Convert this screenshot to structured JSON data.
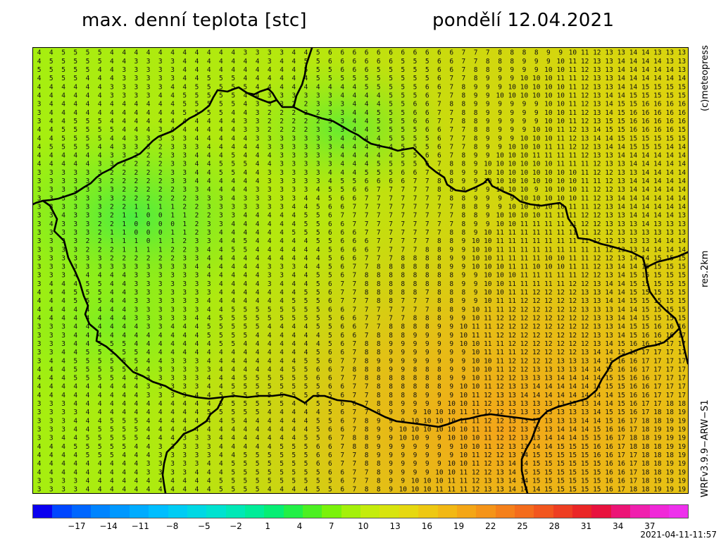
{
  "header": {
    "title": "max. denní teplota [stc]",
    "date": "pondělí 12.04.2021"
  },
  "side_labels": {
    "copyright": "(c)meteopress",
    "resolution": "res.2km",
    "model": "WRFv3.9.9−ARW−S1"
  },
  "colorbar": {
    "ticks": [
      "−17",
      "−14",
      "−11",
      "−8",
      "−5",
      "−2",
      "1",
      "4",
      "7",
      "10",
      "13",
      "16",
      "19",
      "22",
      "25",
      "28",
      "31",
      "34",
      "37"
    ],
    "colors": [
      "#0a00f0",
      "#0046ff",
      "#0066ff",
      "#0084ff",
      "#0098ff",
      "#00acff",
      "#00beff",
      "#00ccf4",
      "#00d8e4",
      "#00e2d0",
      "#00e8b6",
      "#00ec98",
      "#06ee74",
      "#22f046",
      "#4cf022",
      "#7af20a",
      "#a4f00a",
      "#c4ec0c",
      "#d8e40e",
      "#e6d810",
      "#eec812",
      "#f2b814",
      "#f4a616",
      "#f59418",
      "#f5801a",
      "#f46c1c",
      "#f2561e",
      "#ee3e22",
      "#ea2626",
      "#e8123e",
      "#ec1476",
      "#f020ae",
      "#f028d8",
      "#ee30ec"
    ]
  },
  "run_timestamp": "2021-04-11-11:57"
}
